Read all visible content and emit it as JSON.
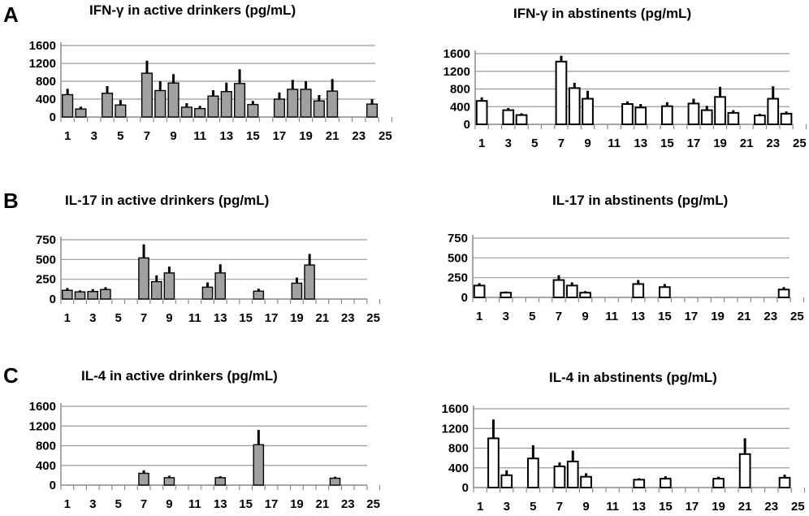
{
  "panels": [
    {
      "letter": "A"
    },
    {
      "letter": "B"
    },
    {
      "letter": "C"
    }
  ],
  "chart_data": [
    {
      "type": "bar",
      "row": 0,
      "col": 0,
      "style": "filled",
      "bar_color": "#a0a0a0",
      "title": "IFN-γ in active drinkers (pg/mL)",
      "ylim": [
        0,
        1600
      ],
      "yticks": [
        0,
        400,
        800,
        1200,
        1600
      ],
      "xticks": [
        1,
        3,
        5,
        7,
        9,
        11,
        13,
        15,
        17,
        19,
        21,
        23,
        25
      ],
      "grid": true,
      "error_bars": true,
      "bars": [
        {
          "x": 1,
          "y": 500,
          "err": 130
        },
        {
          "x": 2,
          "y": 180,
          "err": 50
        },
        {
          "x": 4,
          "y": 530,
          "err": 160
        },
        {
          "x": 5,
          "y": 270,
          "err": 110
        },
        {
          "x": 7,
          "y": 980,
          "err": 280
        },
        {
          "x": 8,
          "y": 590,
          "err": 210
        },
        {
          "x": 9,
          "y": 760,
          "err": 200
        },
        {
          "x": 10,
          "y": 220,
          "err": 90
        },
        {
          "x": 11,
          "y": 190,
          "err": 60
        },
        {
          "x": 12,
          "y": 470,
          "err": 130
        },
        {
          "x": 13,
          "y": 570,
          "err": 200
        },
        {
          "x": 14,
          "y": 750,
          "err": 320
        },
        {
          "x": 15,
          "y": 280,
          "err": 80
        },
        {
          "x": 17,
          "y": 400,
          "err": 150
        },
        {
          "x": 18,
          "y": 620,
          "err": 210
        },
        {
          "x": 19,
          "y": 620,
          "err": 180
        },
        {
          "x": 20,
          "y": 360,
          "err": 130
        },
        {
          "x": 21,
          "y": 580,
          "err": 270
        },
        {
          "x": 24,
          "y": 290,
          "err": 110
        }
      ]
    },
    {
      "type": "bar",
      "row": 0,
      "col": 1,
      "style": "outline",
      "bar_color": "#ffffff",
      "title": "IFN-γ in abstinents (pg/mL)",
      "ylim": [
        0,
        1600
      ],
      "yticks": [
        0,
        400,
        800,
        1200,
        1600
      ],
      "xticks": [
        1,
        3,
        5,
        7,
        9,
        11,
        13,
        15,
        17,
        19,
        21,
        23,
        25
      ],
      "grid": true,
      "error_bars": true,
      "bars": [
        {
          "x": 1,
          "y": 530,
          "err": 80
        },
        {
          "x": 3,
          "y": 320,
          "err": 50
        },
        {
          "x": 4,
          "y": 210,
          "err": 40
        },
        {
          "x": 7,
          "y": 1420,
          "err": 130
        },
        {
          "x": 8,
          "y": 820,
          "err": 120
        },
        {
          "x": 9,
          "y": 580,
          "err": 180
        },
        {
          "x": 12,
          "y": 460,
          "err": 60
        },
        {
          "x": 13,
          "y": 380,
          "err": 80
        },
        {
          "x": 15,
          "y": 410,
          "err": 90
        },
        {
          "x": 17,
          "y": 470,
          "err": 110
        },
        {
          "x": 18,
          "y": 320,
          "err": 100
        },
        {
          "x": 19,
          "y": 620,
          "err": 230
        },
        {
          "x": 20,
          "y": 260,
          "err": 60
        },
        {
          "x": 22,
          "y": 200,
          "err": 40
        },
        {
          "x": 23,
          "y": 580,
          "err": 280
        },
        {
          "x": 24,
          "y": 240,
          "err": 50
        }
      ]
    },
    {
      "type": "bar",
      "row": 1,
      "col": 0,
      "style": "filled",
      "bar_color": "#a0a0a0",
      "title": "IL-17 in active drinkers (pg/mL)",
      "ylim": [
        0,
        750
      ],
      "yticks": [
        0,
        250,
        500,
        750
      ],
      "xticks": [
        1,
        3,
        5,
        7,
        9,
        11,
        13,
        15,
        17,
        19,
        21,
        23,
        25
      ],
      "grid": true,
      "error_bars": true,
      "bars": [
        {
          "x": 1,
          "y": 110,
          "err": 30
        },
        {
          "x": 2,
          "y": 90,
          "err": 20
        },
        {
          "x": 3,
          "y": 95,
          "err": 30
        },
        {
          "x": 4,
          "y": 120,
          "err": 30
        },
        {
          "x": 7,
          "y": 520,
          "err": 170
        },
        {
          "x": 8,
          "y": 220,
          "err": 80
        },
        {
          "x": 9,
          "y": 330,
          "err": 80
        },
        {
          "x": 12,
          "y": 150,
          "err": 60
        },
        {
          "x": 13,
          "y": 330,
          "err": 110
        },
        {
          "x": 16,
          "y": 100,
          "err": 30
        },
        {
          "x": 19,
          "y": 200,
          "err": 70
        },
        {
          "x": 20,
          "y": 430,
          "err": 140
        }
      ]
    },
    {
      "type": "bar",
      "row": 1,
      "col": 1,
      "style": "outline",
      "bar_color": "#ffffff",
      "title": "IL-17 in abstinents (pg/mL)",
      "ylim": [
        0,
        750
      ],
      "yticks": [
        0,
        250,
        500,
        750
      ],
      "xticks": [
        1,
        3,
        5,
        7,
        9,
        11,
        13,
        15,
        17,
        19,
        21,
        23,
        25
      ],
      "grid": true,
      "error_bars": true,
      "bars": [
        {
          "x": 1,
          "y": 150,
          "err": 30
        },
        {
          "x": 3,
          "y": 60,
          "err": 15
        },
        {
          "x": 7,
          "y": 220,
          "err": 60
        },
        {
          "x": 8,
          "y": 150,
          "err": 40
        },
        {
          "x": 9,
          "y": 60,
          "err": 20
        },
        {
          "x": 13,
          "y": 170,
          "err": 50
        },
        {
          "x": 15,
          "y": 130,
          "err": 40
        },
        {
          "x": 24,
          "y": 100,
          "err": 30
        }
      ]
    },
    {
      "type": "bar",
      "row": 2,
      "col": 0,
      "style": "filled",
      "bar_color": "#a0a0a0",
      "title": "IL-4 in active drinkers (pg/mL)",
      "ylim": [
        0,
        1600
      ],
      "yticks": [
        0,
        400,
        800,
        1200,
        1600
      ],
      "xticks": [
        1,
        3,
        5,
        7,
        9,
        11,
        13,
        15,
        17,
        19,
        21,
        23,
        25
      ],
      "grid": true,
      "error_bars": true,
      "bars": [
        {
          "x": 7,
          "y": 240,
          "err": 60
        },
        {
          "x": 9,
          "y": 150,
          "err": 40
        },
        {
          "x": 13,
          "y": 150,
          "err": 30
        },
        {
          "x": 16,
          "y": 820,
          "err": 300
        },
        {
          "x": 22,
          "y": 140,
          "err": 30
        }
      ]
    },
    {
      "type": "bar",
      "row": 2,
      "col": 1,
      "style": "outline",
      "bar_color": "#ffffff",
      "title": "IL-4 in abstinents (pg/mL)",
      "ylim": [
        0,
        1600
      ],
      "yticks": [
        0,
        400,
        800,
        1200,
        1600
      ],
      "xticks": [
        1,
        3,
        5,
        7,
        9,
        11,
        13,
        15,
        17,
        19,
        21,
        23,
        25
      ],
      "grid": true,
      "error_bars": true,
      "bars": [
        {
          "x": 2,
          "y": 1000,
          "err": 380
        },
        {
          "x": 3,
          "y": 250,
          "err": 100
        },
        {
          "x": 5,
          "y": 590,
          "err": 270
        },
        {
          "x": 7,
          "y": 430,
          "err": 80
        },
        {
          "x": 8,
          "y": 530,
          "err": 220
        },
        {
          "x": 9,
          "y": 220,
          "err": 70
        },
        {
          "x": 13,
          "y": 160,
          "err": 30
        },
        {
          "x": 15,
          "y": 180,
          "err": 50
        },
        {
          "x": 19,
          "y": 180,
          "err": 40
        },
        {
          "x": 21,
          "y": 680,
          "err": 320
        },
        {
          "x": 24,
          "y": 200,
          "err": 60
        }
      ]
    }
  ]
}
